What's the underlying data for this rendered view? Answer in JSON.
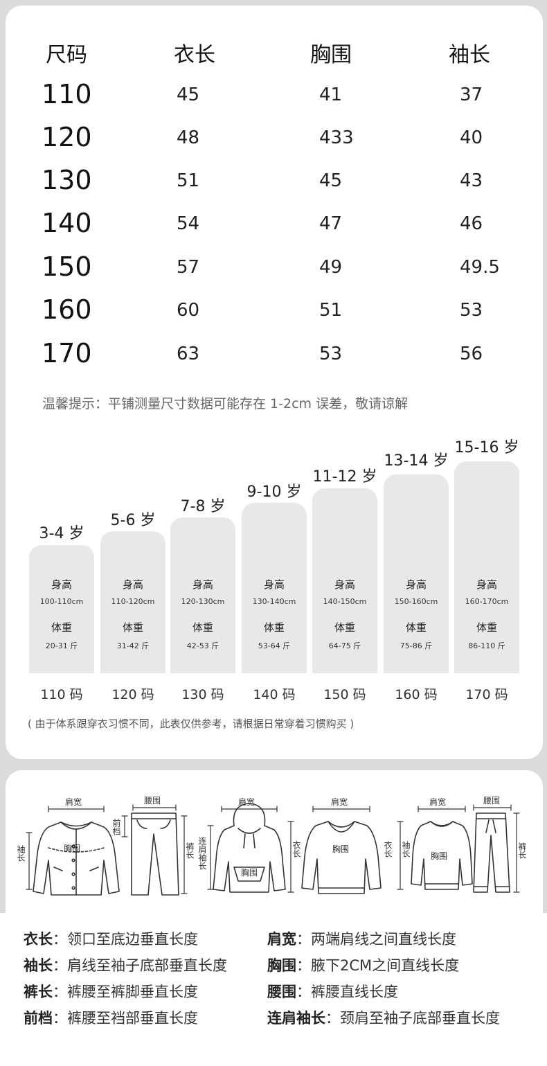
{
  "size_table": {
    "headers": [
      "尺码",
      "衣长",
      "胸围",
      "袖长"
    ],
    "rows": [
      [
        "110",
        "45",
        "41",
        "37"
      ],
      [
        "120",
        "48",
        "433",
        "40"
      ],
      [
        "130",
        "51",
        "45",
        "43"
      ],
      [
        "140",
        "54",
        "47",
        "46"
      ],
      [
        "150",
        "57",
        "49",
        "49.5"
      ],
      [
        "160",
        "60",
        "51",
        "53"
      ],
      [
        "170",
        "63",
        "53",
        "56"
      ]
    ],
    "tip": "温馨提示：平铺测量尺寸数据可能存在 1-2cm 误差，敬请谅解"
  },
  "age_chart": {
    "height_label": "身高",
    "weight_label": "体重",
    "items": [
      {
        "age": "3-4 岁",
        "height": "100-110cm",
        "weight": "20-31 斤",
        "code": "110 码"
      },
      {
        "age": "5-6 岁",
        "height": "110-120cm",
        "weight": "31-42 斤",
        "code": "120 码"
      },
      {
        "age": "7-8 岁",
        "height": "120-130cm",
        "weight": "42-53 斤",
        "code": "130 码"
      },
      {
        "age": "9-10 岁",
        "height": "130-140cm",
        "weight": "53-64 斤",
        "code": "140 码"
      },
      {
        "age": "11-12 岁",
        "height": "140-150cm",
        "weight": "64-75 斤",
        "code": "150 码"
      },
      {
        "age": "13-14 岁",
        "height": "150-160cm",
        "weight": "75-86 斤",
        "code": "160 码"
      },
      {
        "age": "15-16 岁",
        "height": "160-170cm",
        "weight": "86-110 斤",
        "code": "170 码"
      }
    ],
    "note": "( 由于体系跟穿衣习惯不同，此表仅供参考，请根据日常穿着习惯购买 )"
  },
  "illustration_labels": {
    "shoulder": "肩宽",
    "waist": "腰围",
    "chest": "胸围",
    "sleeve": "袖长",
    "rise": "前档",
    "pants_length": "裤长",
    "raglan_sleeve": "连肩袖长",
    "body_length": "衣长"
  },
  "definitions": [
    {
      "term": "衣长",
      "desc": "领口至底边垂直长度"
    },
    {
      "term": "肩宽",
      "desc": "两端肩线之间直线长度"
    },
    {
      "term": "袖长",
      "desc": "肩线至袖子底部垂直长度"
    },
    {
      "term": "胸围",
      "desc": "腋下2CM之间直线长度"
    },
    {
      "term": "裤长",
      "desc": "裤腰至裤脚垂直长度"
    },
    {
      "term": "腰围",
      "desc": "裤腰直线长度"
    },
    {
      "term": "前档",
      "desc": "裤腰至裆部垂直长度"
    },
    {
      "term": "连肩袖长",
      "desc": "颈肩至袖子底部垂直长度"
    }
  ],
  "colors": {
    "background": "#dcdcdc",
    "card": "#ffffff",
    "bar": "#eae7e7"
  }
}
